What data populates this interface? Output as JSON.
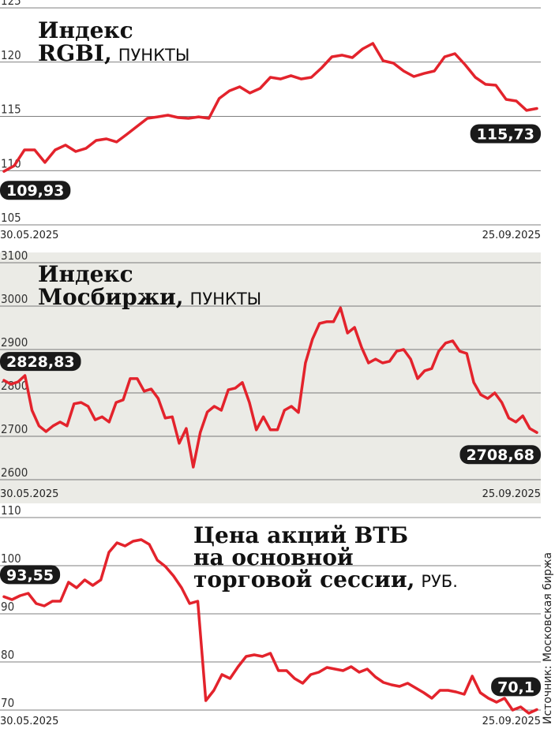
{
  "chart_data": [
    {
      "type": "line",
      "title": [
        "Индекс",
        "RGBI,"
      ],
      "units": "ПУНКТЫ",
      "categories": [
        "30.05.2025",
        null,
        null,
        null,
        null,
        null,
        null,
        null,
        null,
        null,
        null,
        null,
        null,
        null,
        null,
        null,
        null,
        null,
        null,
        null,
        null,
        null,
        null,
        null,
        null,
        null,
        null,
        null,
        null,
        null,
        null,
        null,
        null,
        null,
        null,
        null,
        null,
        null,
        null,
        null,
        null,
        null,
        null,
        null,
        null,
        null,
        null,
        null,
        null,
        null,
        null,
        null,
        "25.09.2025"
      ],
      "series": [
        {
          "name": "Индекс RGBI",
          "color": "#e3232c",
          "values": [
            109.93,
            110.45,
            111.91,
            111.91,
            110.75,
            111.91,
            112.35,
            111.76,
            112.05,
            112.78,
            112.93,
            112.64,
            113.36,
            114.09,
            114.82,
            114.96,
            115.11,
            114.89,
            114.82,
            114.96,
            114.82,
            116.64,
            117.36,
            117.73,
            117.15,
            117.58,
            118.6,
            118.45,
            118.75,
            118.45,
            118.6,
            119.47,
            120.49,
            120.64,
            120.42,
            121.22,
            121.73,
            120.13,
            119.91,
            119.18,
            118.67,
            118.96,
            119.18,
            120.49,
            120.78,
            119.76,
            118.6,
            117.95,
            117.87,
            116.56,
            116.42,
            115.55,
            115.73
          ],
          "value_labels": [
            "109,93",
            null,
            null,
            null,
            null,
            null,
            null,
            null,
            null,
            null,
            null,
            null,
            null,
            null,
            null,
            null,
            null,
            null,
            null,
            null,
            null,
            null,
            null,
            null,
            null,
            null,
            null,
            null,
            null,
            null,
            null,
            null,
            null,
            null,
            null,
            null,
            null,
            null,
            null,
            null,
            null,
            null,
            null,
            null,
            null,
            null,
            null,
            null,
            null,
            null,
            null,
            null,
            "115,73"
          ]
        }
      ],
      "ylim": [
        105,
        125
      ],
      "yticks": [
        105,
        110,
        115,
        120,
        125
      ],
      "grid": true
    },
    {
      "type": "line",
      "title": [
        "Индекс",
        "Мосбиржи,"
      ],
      "units": "ПУНКТЫ",
      "categories": [
        "30.05.2025",
        null,
        null,
        null,
        null,
        null,
        null,
        null,
        null,
        null,
        null,
        null,
        null,
        null,
        null,
        null,
        null,
        null,
        null,
        null,
        null,
        null,
        null,
        null,
        null,
        null,
        null,
        null,
        null,
        null,
        null,
        null,
        null,
        null,
        null,
        null,
        null,
        null,
        null,
        null,
        null,
        null,
        null,
        null,
        null,
        null,
        null,
        null,
        null,
        null,
        null,
        null,
        null,
        null,
        null,
        null,
        null,
        null,
        null,
        null,
        null,
        null,
        null,
        null,
        null,
        null,
        null,
        null,
        null,
        null,
        null,
        null,
        null,
        null,
        null,
        null,
        "25.09.2025"
      ],
      "series": [
        {
          "name": "Индекс Мосбиржи",
          "color": "#e3232c",
          "values": [
            2828.83,
            2820,
            2825.5,
            2840,
            2760,
            2724,
            2711,
            2724,
            2733,
            2724,
            2775,
            2778,
            2769,
            2738,
            2745,
            2733,
            2778,
            2784,
            2833,
            2833,
            2804,
            2809,
            2787,
            2742,
            2745,
            2684,
            2718,
            2629,
            2709,
            2756,
            2769,
            2760,
            2807,
            2811,
            2824,
            2778,
            2715,
            2745,
            2715,
            2715,
            2760,
            2769,
            2755,
            2869,
            2924,
            2960,
            2964,
            2964,
            2996,
            2938,
            2951,
            2905,
            2869,
            2878,
            2869,
            2873,
            2896,
            2900,
            2878,
            2833,
            2851,
            2856,
            2896,
            2915,
            2920,
            2896,
            2891,
            2824,
            2796,
            2787,
            2800,
            2778,
            2742,
            2733,
            2747,
            2718,
            2708.68
          ],
          "value_labels": [
            "2828,83",
            null,
            null,
            null,
            null,
            null,
            null,
            null,
            null,
            null,
            null,
            null,
            null,
            null,
            null,
            null,
            null,
            null,
            null,
            null,
            null,
            null,
            null,
            null,
            null,
            null,
            null,
            null,
            null,
            null,
            null,
            null,
            null,
            null,
            null,
            null,
            null,
            null,
            null,
            null,
            null,
            null,
            null,
            null,
            null,
            null,
            null,
            null,
            null,
            null,
            null,
            null,
            null,
            null,
            null,
            null,
            null,
            null,
            null,
            null,
            null,
            null,
            null,
            null,
            null,
            null,
            null,
            null,
            null,
            null,
            null,
            null,
            null,
            null,
            null,
            null,
            "2708,68"
          ]
        }
      ],
      "ylim": [
        2600,
        3100
      ],
      "yticks": [
        2600,
        2700,
        2800,
        2900,
        3000,
        3100
      ],
      "grid": true
    },
    {
      "type": "line",
      "title": [
        "Цена акций ВТБ",
        "на основной",
        "торговой сессии,"
      ],
      "units": "РУБ.",
      "categories": [
        "30.05.2025",
        null,
        null,
        null,
        null,
        null,
        null,
        null,
        null,
        null,
        null,
        null,
        null,
        null,
        null,
        null,
        null,
        null,
        null,
        null,
        null,
        null,
        null,
        null,
        null,
        null,
        null,
        null,
        null,
        null,
        null,
        null,
        null,
        null,
        null,
        null,
        null,
        null,
        null,
        null,
        null,
        null,
        null,
        null,
        null,
        null,
        null,
        null,
        null,
        null,
        null,
        null,
        null,
        null,
        null,
        null,
        null,
        null,
        null,
        null,
        null,
        null,
        null,
        null,
        null,
        null,
        "25.09.2025"
      ],
      "series": [
        {
          "name": "Цена акций ВТБ",
          "color": "#e3232c",
          "values": [
            93.55,
            92.95,
            93.77,
            94.26,
            92.13,
            91.64,
            92.62,
            92.62,
            96.56,
            95.41,
            97.05,
            95.9,
            97.05,
            102.79,
            104.75,
            104.1,
            105.08,
            105.41,
            104.43,
            101.15,
            99.84,
            97.87,
            95.41,
            92.13,
            92.62,
            71.97,
            74.1,
            77.38,
            76.56,
            79.02,
            81.15,
            81.48,
            81.15,
            81.8,
            78.2,
            78.2,
            76.56,
            75.57,
            77.38,
            77.87,
            78.85,
            78.52,
            78.2,
            79.02,
            77.87,
            78.52,
            76.89,
            75.74,
            75.25,
            74.92,
            75.57,
            74.59,
            73.61,
            72.46,
            74.1,
            74.1,
            73.77,
            73.28,
            77.05,
            73.61,
            72.46,
            71.64,
            72.46,
            70.0,
            70.66,
            69.34,
            70.1
          ],
          "value_labels": [
            "93,55",
            null,
            null,
            null,
            null,
            null,
            null,
            null,
            null,
            null,
            null,
            null,
            null,
            null,
            null,
            null,
            null,
            null,
            null,
            null,
            null,
            null,
            null,
            null,
            null,
            null,
            null,
            null,
            null,
            null,
            null,
            null,
            null,
            null,
            null,
            null,
            null,
            null,
            null,
            null,
            null,
            null,
            null,
            null,
            null,
            null,
            null,
            null,
            null,
            null,
            null,
            null,
            null,
            null,
            null,
            null,
            null,
            null,
            null,
            null,
            null,
            null,
            null,
            null,
            null,
            null,
            "70,1"
          ]
        }
      ],
      "ylim": [
        70,
        110
      ],
      "yticks": [
        70,
        80,
        90,
        100,
        110
      ],
      "grid": true
    }
  ],
  "source": "Источник: Московская биржа"
}
